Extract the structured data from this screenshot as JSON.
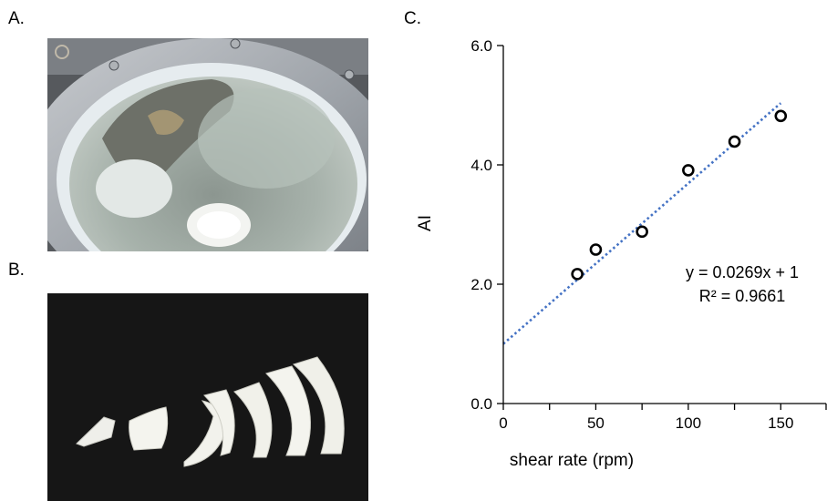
{
  "panels": {
    "a_label": "A.",
    "b_label": "B.",
    "c_label": "C."
  },
  "chart_data": {
    "type": "scatter",
    "xlabel": "shear rate (rpm)",
    "ylabel": "AI",
    "xlim": [
      0,
      175
    ],
    "ylim": [
      0,
      6
    ],
    "x_ticks": [
      0,
      50,
      100,
      150
    ],
    "x_tick_labels": [
      "0",
      "50",
      "100",
      "150"
    ],
    "x_minor_ticks": [
      25,
      75,
      125,
      175
    ],
    "y_ticks": [
      0,
      2,
      4,
      6
    ],
    "y_tick_labels": [
      "0.0",
      "2.0",
      "4.0",
      "6.0"
    ],
    "grid": false,
    "points": [
      {
        "x": 40,
        "y": 2.17
      },
      {
        "x": 50,
        "y": 2.58
      },
      {
        "x": 75,
        "y": 2.88
      },
      {
        "x": 100,
        "y": 3.91
      },
      {
        "x": 125,
        "y": 4.39
      },
      {
        "x": 150,
        "y": 4.82
      }
    ],
    "trendline": {
      "slope": 0.0269,
      "intercept": 1,
      "x_range": [
        0,
        150
      ],
      "equation_label": "y = 0.0269x + 1",
      "r2_label": "R² = 0.9661",
      "color": "#4472c4"
    },
    "marker_color": "#000000"
  }
}
